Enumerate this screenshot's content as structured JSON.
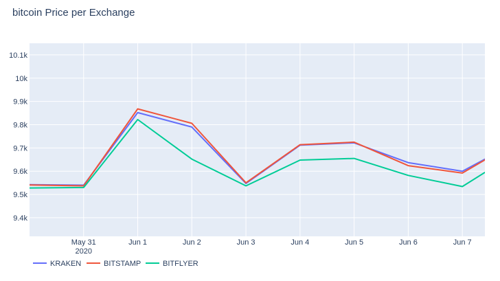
{
  "chart_data": {
    "type": "line",
    "title": "bitcoin Price per Exchange",
    "xlabel": "",
    "ylabel": "",
    "x": [
      "2020-05-30",
      "2020-05-31",
      "2020-06-01",
      "2020-06-02",
      "2020-06-03",
      "2020-06-04",
      "2020-06-05",
      "2020-06-06",
      "2020-06-07",
      "2020-06-08"
    ],
    "x_tick_values": [
      "2020-05-31",
      "2020-06-01",
      "2020-06-02",
      "2020-06-03",
      "2020-06-04",
      "2020-06-05",
      "2020-06-06",
      "2020-06-07"
    ],
    "x_tick_labels": [
      [
        "May 31",
        "2020"
      ],
      [
        "Jun 1"
      ],
      [
        "Jun 2"
      ],
      [
        "Jun 3"
      ],
      [
        "Jun 4"
      ],
      [
        "Jun 5"
      ],
      [
        "Jun 6"
      ],
      [
        "Jun 7"
      ]
    ],
    "xlim": [
      "2020-05-30T00:00:00",
      "2020-06-07T10:00:00"
    ],
    "ylim": [
      9320,
      10150
    ],
    "y_tick_values": [
      9400,
      9500,
      9600,
      9700,
      9800,
      9900,
      10000,
      10100
    ],
    "y_tick_labels": [
      "9.4k",
      "9.5k",
      "9.6k",
      "9.7k",
      "9.8k",
      "9.9k",
      "10k",
      "10.1k"
    ],
    "grid": true,
    "plot_background": "#e5ecf6",
    "legend_position": "bottom-left",
    "series": [
      {
        "name": "KRAKEN",
        "color": "#636efa",
        "values": [
          9542,
          9540,
          9852,
          9790,
          9547,
          9712,
          9722,
          9637,
          9600,
          9725
        ]
      },
      {
        "name": "BITSTAMP",
        "color": "#ef553b",
        "values": [
          9541,
          9537,
          9868,
          9806,
          9550,
          9714,
          9725,
          9624,
          9592,
          9728
        ]
      },
      {
        "name": "BITFLYER",
        "color": "#00cc96",
        "values": [
          9528,
          9530,
          9822,
          9652,
          9537,
          9648,
          9655,
          9582,
          9534,
          9680
        ]
      }
    ]
  }
}
